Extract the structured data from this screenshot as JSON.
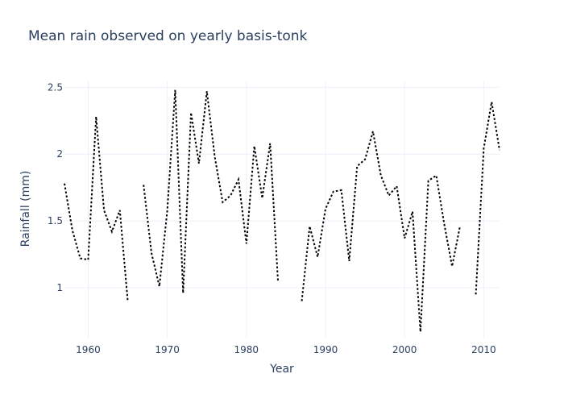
{
  "chart_data": {
    "type": "line",
    "title": "Mean rain observed on yearly basis-tonk",
    "xlabel": "Year",
    "ylabel": "Rainfall (mm)",
    "xlim": [
      1957,
      2012
    ],
    "ylim": [
      0.62,
      2.55
    ],
    "x_ticks": [
      1960,
      1970,
      1980,
      1990,
      2000,
      2010
    ],
    "x_tick_labels": [
      "1960",
      "1970",
      "1980",
      "1990",
      "2000",
      "2010"
    ],
    "y_ticks": [
      1,
      1.5,
      2,
      2.5
    ],
    "y_tick_labels": [
      "1",
      "1.5",
      "2",
      "2.5"
    ],
    "grid": true,
    "line_color": "#000000",
    "line_style": "dotted",
    "series": [
      {
        "x": [
          1957,
          1958,
          1959,
          1960,
          1961,
          1962,
          1963,
          1964,
          1965,
          1966,
          1967,
          1968,
          1969,
          1970,
          1971,
          1972,
          1973,
          1974,
          1975,
          1976,
          1977,
          1978,
          1979,
          1980,
          1981,
          1982,
          1983,
          1984,
          1985,
          1986,
          1987,
          1988,
          1989,
          1990,
          1991,
          1992,
          1993,
          1994,
          1995,
          1996,
          1997,
          1998,
          1999,
          2000,
          2001,
          2002,
          2003,
          2004,
          2005,
          2006,
          2007,
          2008,
          2009,
          2010,
          2011,
          2012
        ],
        "y": [
          1.78,
          1.43,
          1.22,
          1.21,
          2.28,
          1.58,
          1.42,
          1.58,
          0.9,
          null,
          1.77,
          1.26,
          1.01,
          1.58,
          2.48,
          0.96,
          2.31,
          1.93,
          2.47,
          1.98,
          1.64,
          1.69,
          1.81,
          1.33,
          2.06,
          1.67,
          2.08,
          1.04,
          null,
          null,
          0.9,
          1.46,
          1.23,
          1.59,
          1.72,
          1.73,
          1.2,
          1.91,
          1.96,
          2.17,
          1.84,
          1.69,
          1.76,
          1.37,
          1.57,
          0.67,
          1.8,
          1.84,
          1.48,
          1.16,
          1.46,
          null,
          0.95,
          2.04,
          2.39,
          2.03
        ]
      }
    ]
  }
}
